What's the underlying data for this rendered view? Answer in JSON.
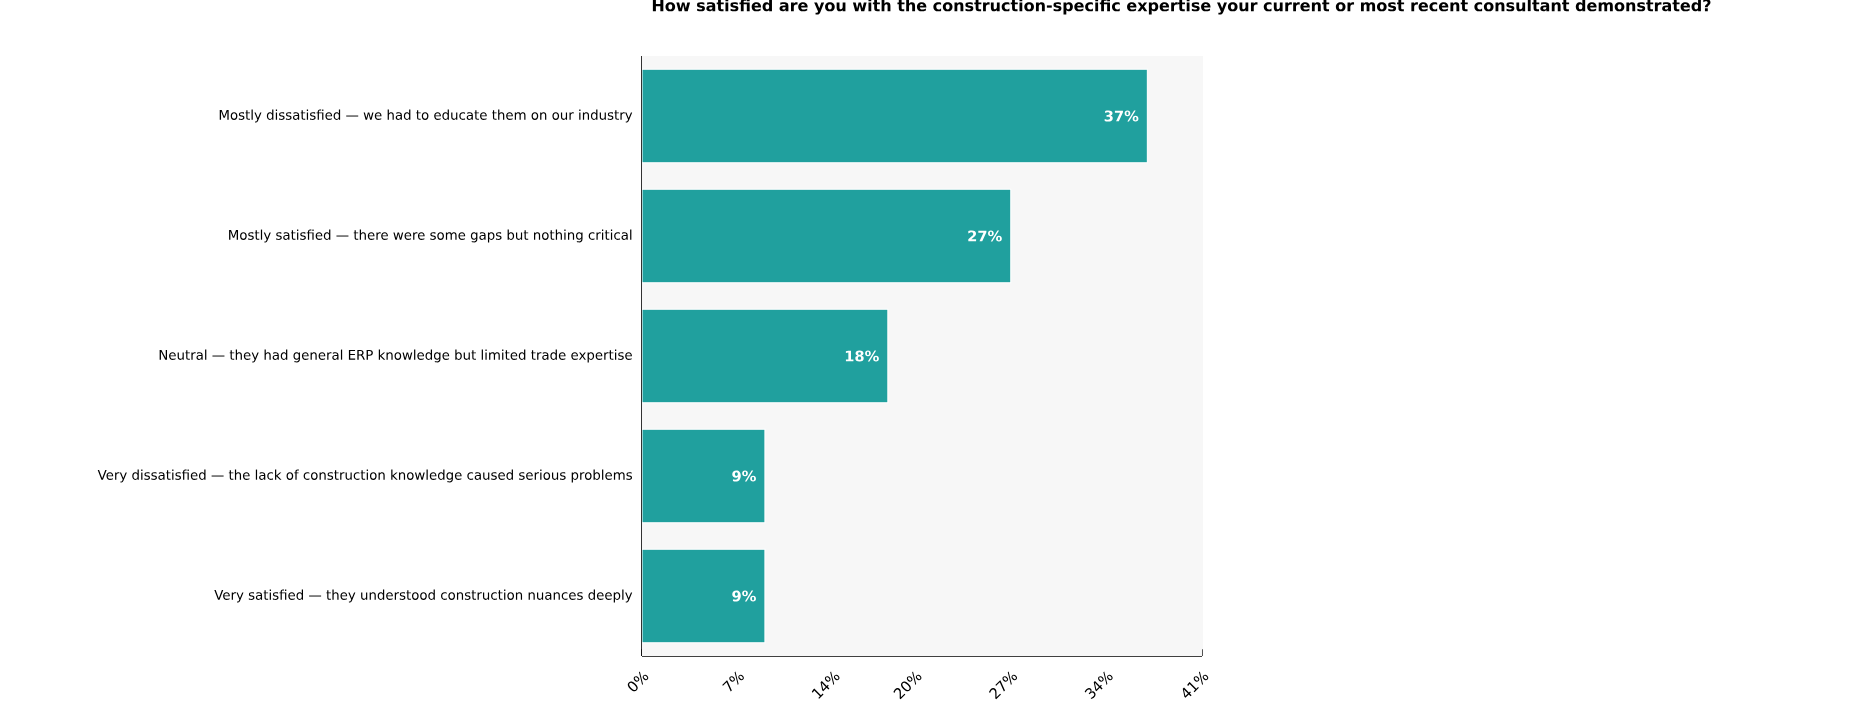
{
  "chart_data": {
    "type": "bar",
    "orientation": "horizontal",
    "title": "How satisfied are you with the construction-specific expertise your current or most recent consultant demonstrated?",
    "categories": [
      "Mostly dissatisfied — we had to educate them on our industry",
      "Mostly satisfied — there were some gaps but nothing critical",
      "Neutral — they had general ERP knowledge but limited trade expertise",
      "Very dissatisfied — the lack of construction knowledge caused serious problems",
      "Very satisfied — they understood construction nuances deeply"
    ],
    "values": [
      37,
      27,
      18,
      9,
      9
    ],
    "value_labels": [
      "37%",
      "27%",
      "18%",
      "9%",
      "9%"
    ],
    "color": "#20a09e",
    "xlim": [
      0,
      41
    ],
    "xticks": [
      {
        "value": 0,
        "label": "0%"
      },
      {
        "value": 7,
        "label": "7%"
      },
      {
        "value": 14,
        "label": "14%"
      },
      {
        "value": 20,
        "label": "20%"
      },
      {
        "value": 27,
        "label": "27%"
      },
      {
        "value": 34,
        "label": "34%"
      },
      {
        "value": 41,
        "label": "41%"
      }
    ],
    "grid": "x"
  }
}
